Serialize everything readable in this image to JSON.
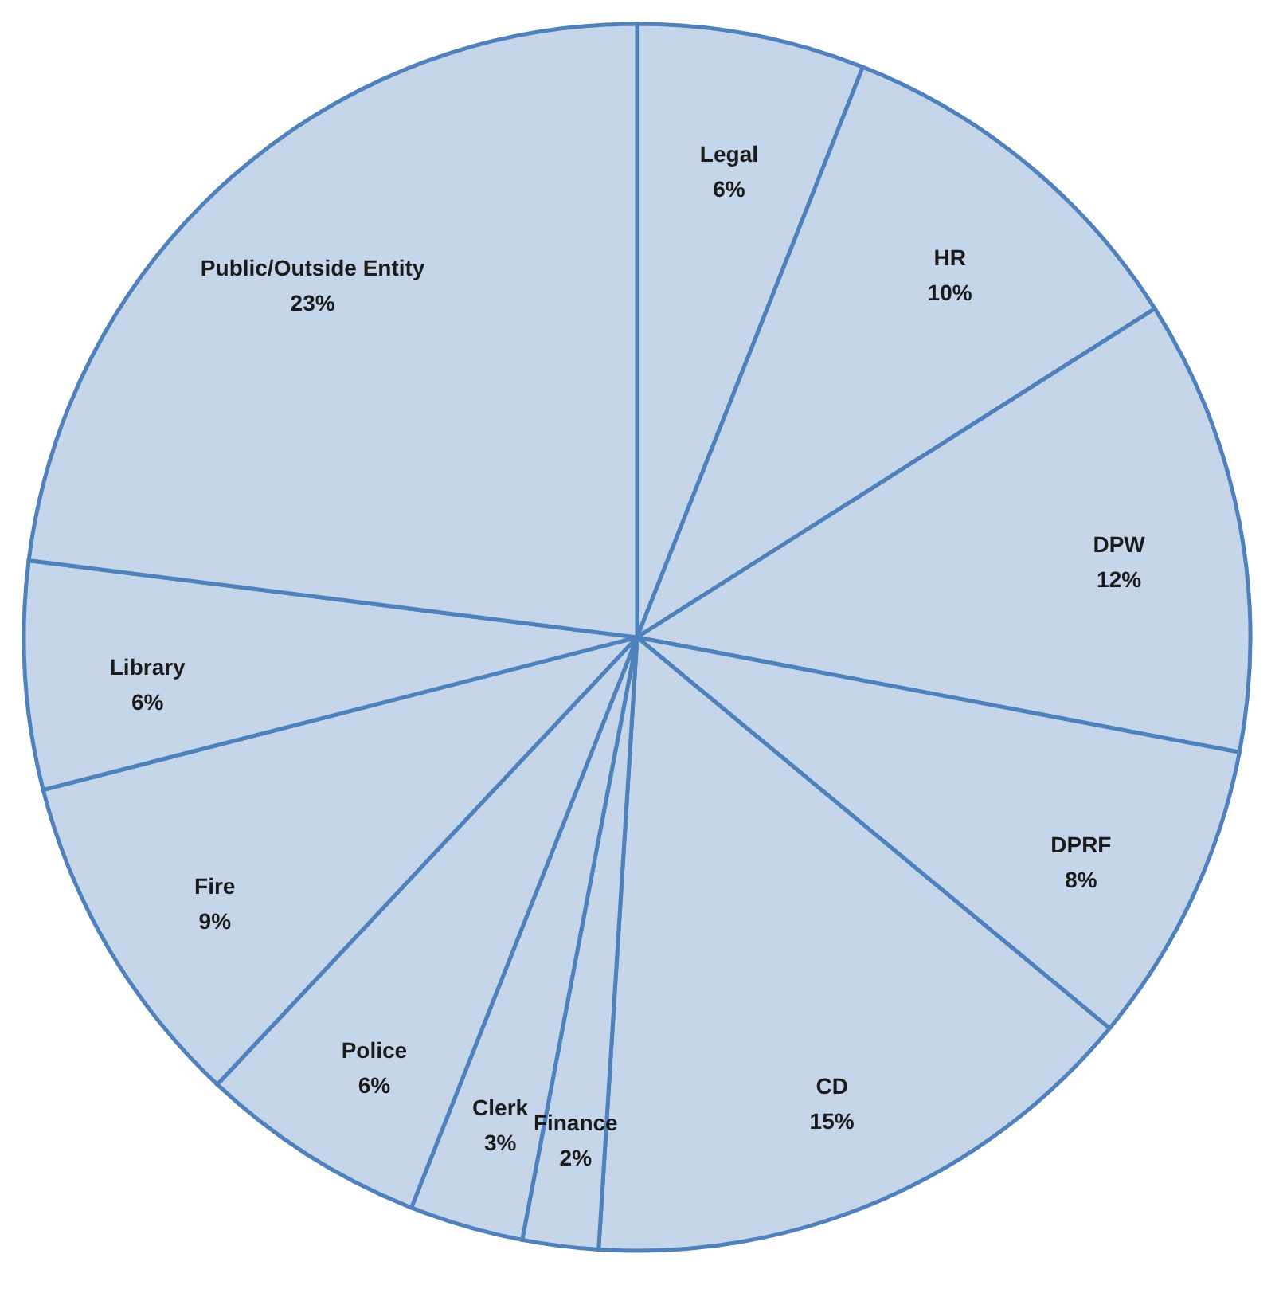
{
  "chart_data": {
    "type": "pie",
    "categories": [
      "Legal",
      "HR",
      "DPW",
      "DPRF",
      "CD",
      "Finance",
      "Clerk",
      "Police",
      "Fire",
      "Library",
      "Public/Outside Entity"
    ],
    "values": [
      6,
      10,
      12,
      8,
      15,
      2,
      3,
      6,
      9,
      6,
      23
    ],
    "value_labels": [
      "6%",
      "10%",
      "12%",
      "8%",
      "15%",
      "2%",
      "3%",
      "6%",
      "9%",
      "6%",
      "23%"
    ],
    "colors": [
      "#c6d6ea",
      "#c6d6ea",
      "#c6d6ea",
      "#c6d6ea",
      "#c6d6ea",
      "#c6d6ea",
      "#c6d6ea",
      "#c6d6ea",
      "#c6d6ea",
      "#c6d6ea",
      "#c6d6ea"
    ]
  }
}
